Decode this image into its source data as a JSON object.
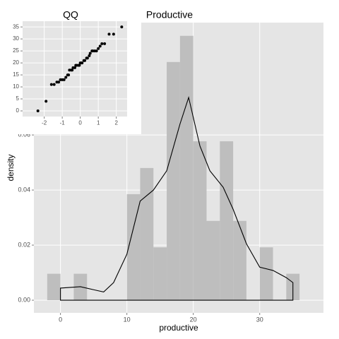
{
  "chart_data": [
    {
      "type": "histogram",
      "title": "Productive",
      "xlabel": "productive",
      "ylabel": "density",
      "bins": [
        -2,
        0,
        2,
        4,
        6,
        8,
        10,
        12,
        14,
        16,
        18,
        20,
        22,
        24,
        26,
        28,
        30,
        32,
        34,
        36
      ],
      "values": [
        0.0096,
        0,
        0.0096,
        0,
        0,
        0,
        0.0385,
        0.048,
        0.0192,
        0.0865,
        0.096,
        0.0577,
        0.0288,
        0.0577,
        0.0288,
        0,
        0.0192,
        0,
        0.0096
      ],
      "color": "#bebebe",
      "curve": {
        "color": "#000000",
        "x": [
          0,
          0,
          3,
          5,
          6.5,
          8,
          10,
          12,
          14,
          16,
          18,
          19.3,
          21,
          22.5,
          24.5,
          26,
          28,
          30,
          32,
          34,
          35,
          35
        ],
        "y": [
          0,
          0.0044,
          0.0049,
          0.0038,
          0.003,
          0.0064,
          0.0167,
          0.036,
          0.04,
          0.047,
          0.064,
          0.0736,
          0.056,
          0.047,
          0.041,
          0.033,
          0.0205,
          0.012,
          0.0108,
          0.0082,
          0.0064,
          0
        ]
      },
      "xlim": [
        -4,
        39.6
      ],
      "ylim": [
        -0.0046,
        0.1008
      ],
      "xticks": [
        0,
        10,
        20,
        30
      ],
      "yticks": [
        {
          "value": 0,
          "label": "0.00"
        },
        {
          "value": 0.02,
          "label": "0.02"
        },
        {
          "value": 0.04,
          "label": "0.04"
        },
        {
          "value": 0.06,
          "label": "0.06"
        }
      ],
      "grid": true
    },
    {
      "type": "scatter",
      "title": "QQ",
      "color": "#000000",
      "x": [
        -2.35,
        -1.9,
        -1.6,
        -1.45,
        -1.3,
        -1.2,
        -1.1,
        -1,
        -0.9,
        -0.8,
        -0.7,
        -0.65,
        -0.6,
        -0.5,
        -0.45,
        -0.4,
        -0.3,
        -0.25,
        -0.2,
        -0.1,
        -0.05,
        0,
        0.05,
        0.1,
        0.2,
        0.25,
        0.35,
        0.4,
        0.5,
        0.55,
        0.65,
        0.7,
        0.8,
        0.9,
        1.0,
        1.1,
        1.2,
        1.35,
        1.6,
        1.85,
        2.3
      ],
      "values": [
        0,
        4,
        11,
        11,
        12,
        12,
        13,
        13,
        13,
        14,
        15,
        15,
        17,
        17,
        17,
        18,
        18,
        19,
        19,
        19,
        19,
        20,
        20,
        20,
        21,
        21,
        22,
        22,
        23,
        24,
        25,
        25,
        25,
        25,
        26,
        27,
        28,
        28,
        32,
        32,
        35
      ],
      "xlim": [
        -3.2,
        2.6
      ],
      "ylim": [
        -2.35,
        37.4
      ],
      "xticks": [
        -2,
        -1,
        0,
        1,
        2
      ],
      "yticks": [
        0,
        5,
        10,
        15,
        20,
        25,
        30,
        35
      ],
      "grid": true
    }
  ]
}
